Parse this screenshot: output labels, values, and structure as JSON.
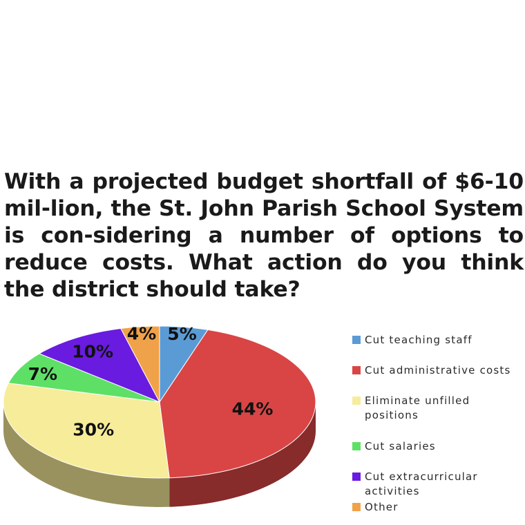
{
  "question": "With a projected budget shortfall of $6-10 mil-lion, the St. John Parish School System is con-sidering a number of options to reduce costs. What action do you think the district should take?",
  "chart_data": {
    "type": "pie",
    "title": "",
    "slices": [
      {
        "label": "Cut teaching staff",
        "value": 5,
        "display": "5%",
        "color": "#5b9bd5"
      },
      {
        "label": "Cut administrative costs",
        "value": 44,
        "display": "44%",
        "color": "#d94545"
      },
      {
        "label": "Eliminate unfilled positions",
        "value": 30,
        "display": "30%",
        "color": "#f7ec9a"
      },
      {
        "label": "Cut salaries",
        "value": 7,
        "display": "7%",
        "color": "#5ee067"
      },
      {
        "label": "Cut extracurricular activities",
        "value": 10,
        "display": "10%",
        "color": "#6a1be0"
      },
      {
        "label": "Other",
        "value": 4,
        "display": "4%",
        "color": "#f0a24a"
      }
    ],
    "legend_position": "right",
    "legend_labels": [
      "Cut teaching staff",
      "Cut administrative costs",
      "Eliminate unfilled\npositions",
      "Cut salaries",
      "Cut extracurricular\nactivities",
      "Other"
    ]
  }
}
